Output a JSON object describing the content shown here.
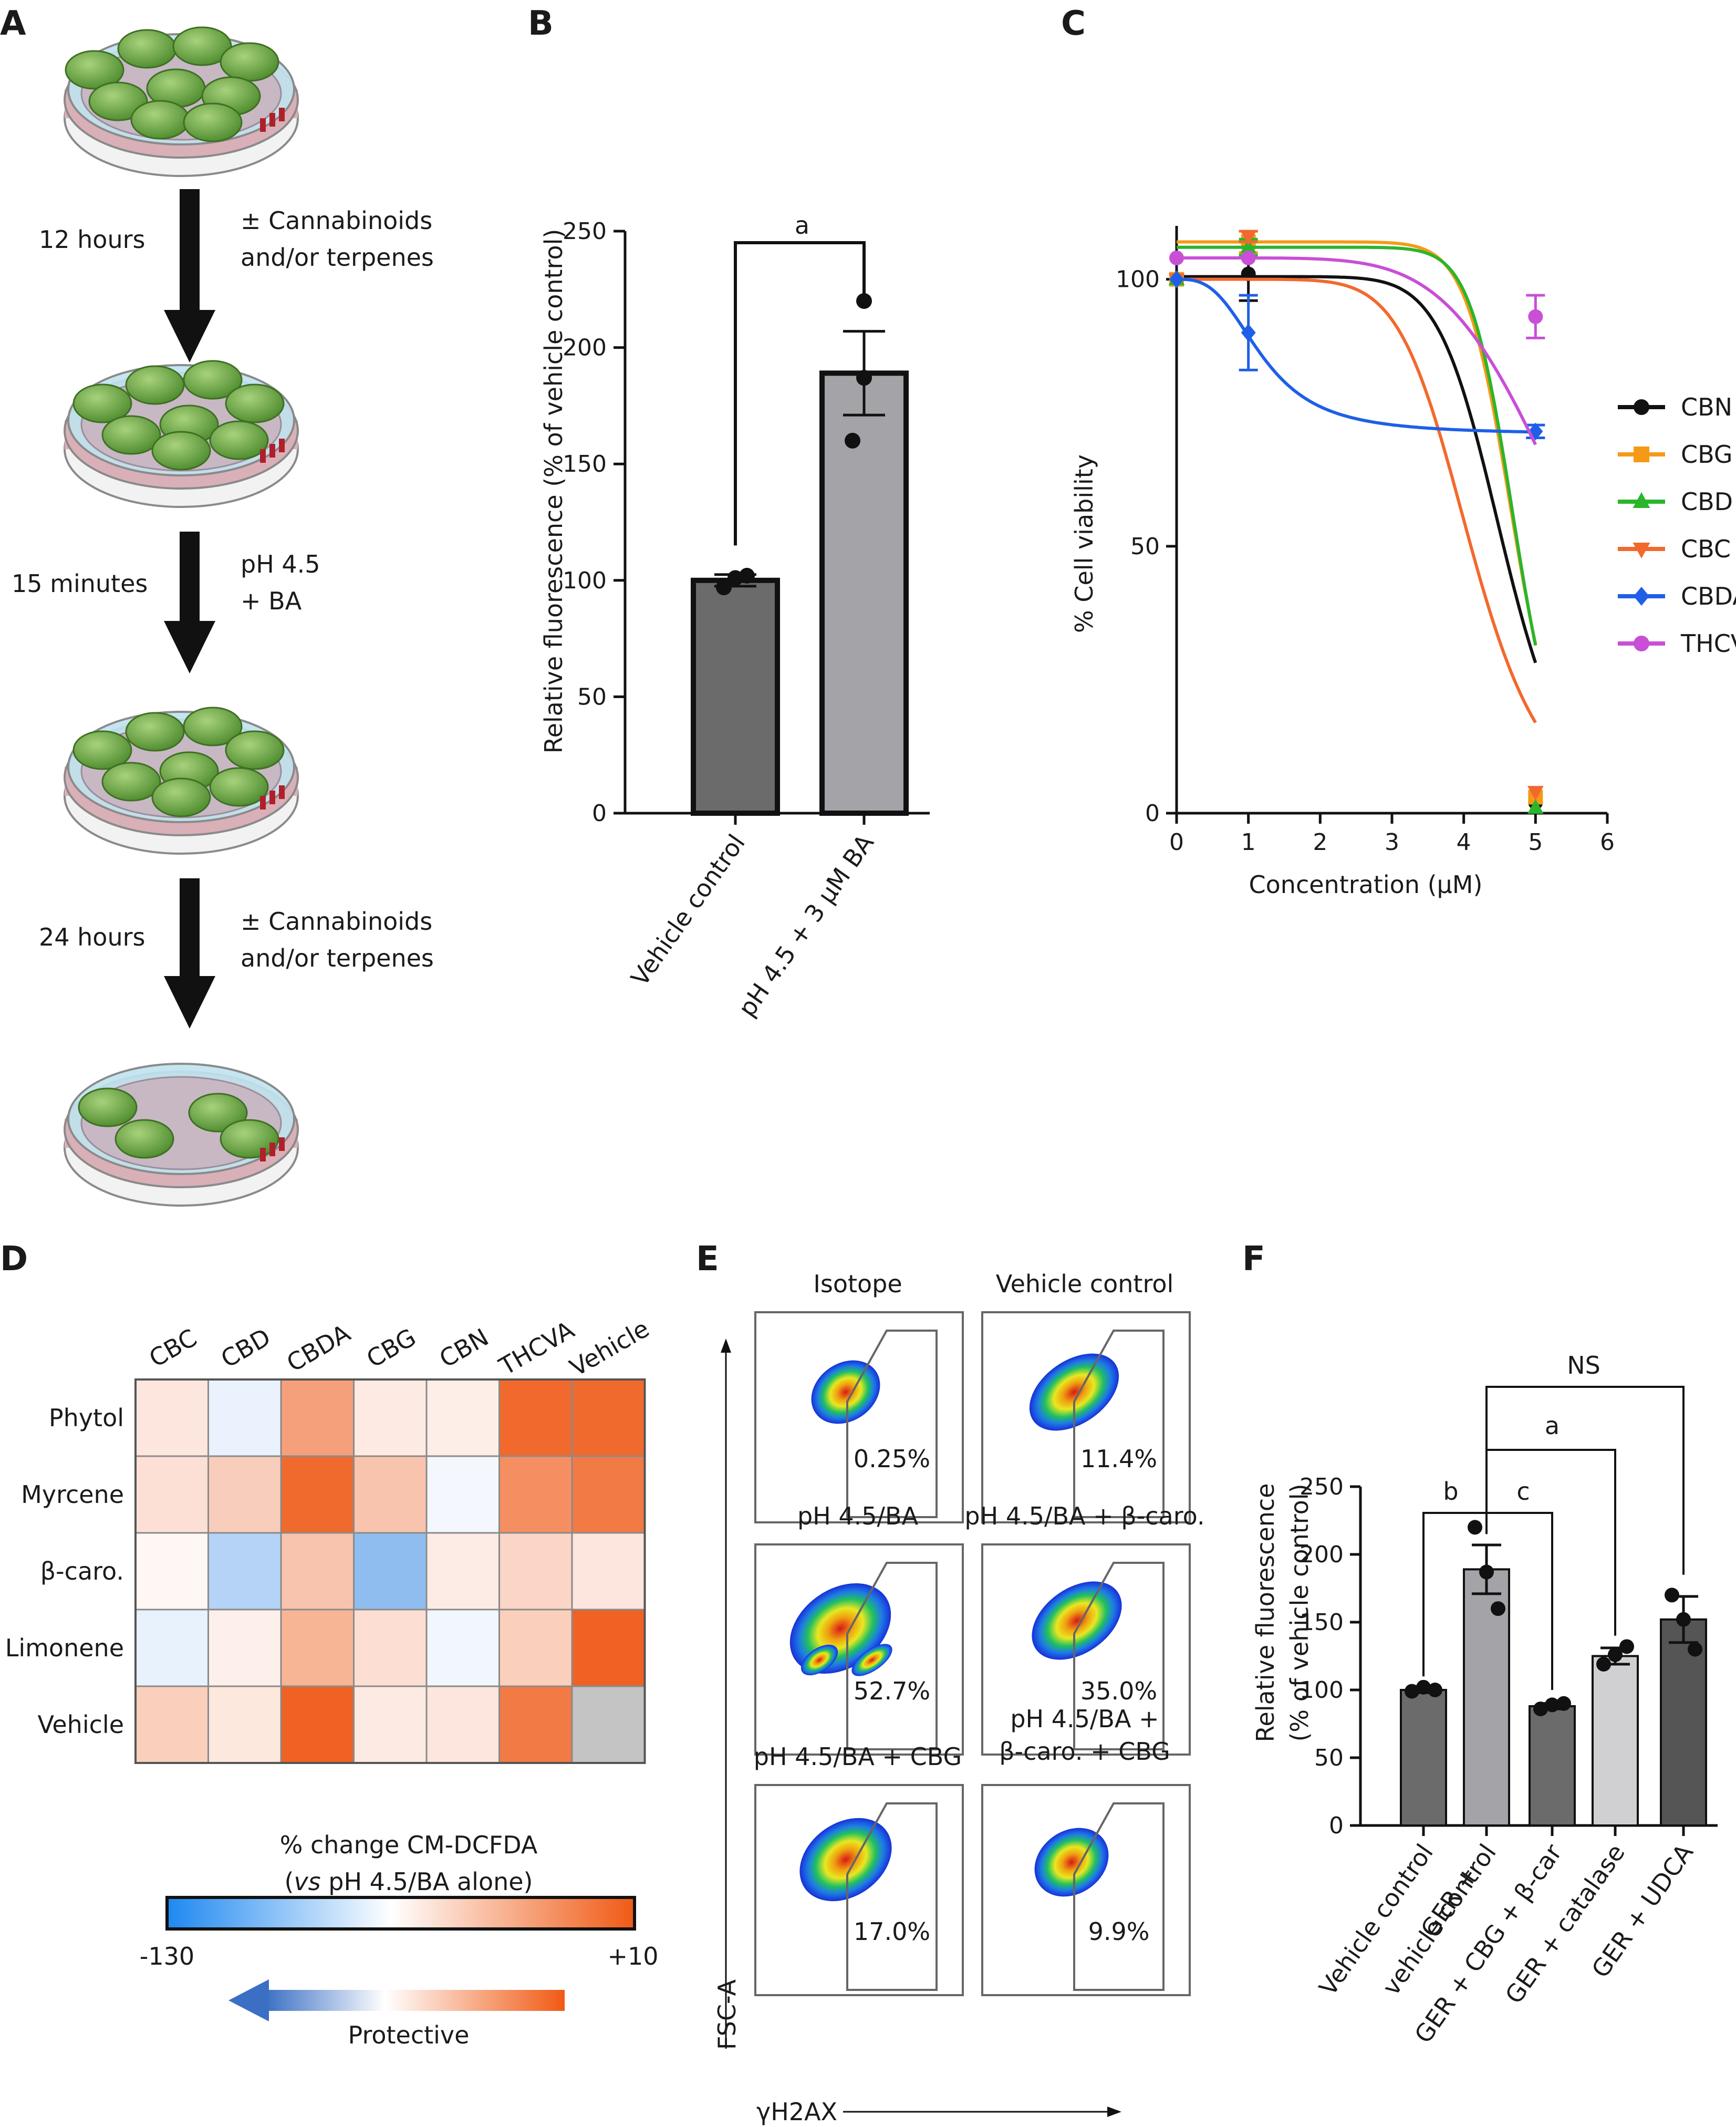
{
  "panels": {
    "A": {
      "label": "A",
      "steps": [
        {
          "time": "12 hours",
          "note1": "± Cannabinoids",
          "note2": "and/or terpenes"
        },
        {
          "time": "15 minutes",
          "note1": "pH 4.5",
          "note2": "+ BA"
        },
        {
          "time": "24 hours",
          "note1": "± Cannabinoids",
          "note2": "and/or terpenes"
        }
      ],
      "colors": {
        "cell": "#5f9a3c",
        "cell_light": "#8fc063",
        "dish": "#bfe3ee",
        "dish_rim": "#8a8a8a",
        "media": "#d9b0b8",
        "marker": "#b0202a"
      }
    },
    "B": {
      "label": "B",
      "ylabel": "Relative fluorescence (% of vehicle control)",
      "sig": "a",
      "chart_data": {
        "type": "bar",
        "categories": [
          "Vehicle control",
          "pH 4.5 + 3 μM BA"
        ],
        "values": [
          100,
          189
        ],
        "errors": [
          2.5,
          18
        ],
        "points": [
          [
            97,
            102,
            101
          ],
          [
            160,
            187,
            220
          ]
        ],
        "ylim": [
          0,
          250
        ],
        "yticks": [
          0,
          50,
          100,
          150,
          200,
          250
        ],
        "colors": [
          "#6b6b6b",
          "#a3a3a8"
        ]
      }
    },
    "C": {
      "label": "C",
      "xlabel": "Concentration (μM)",
      "ylabel": "% Cell viability",
      "chart_data": {
        "type": "line",
        "xlim": [
          0,
          6
        ],
        "ylim": [
          0,
          110
        ],
        "xticks": [
          0,
          1,
          2,
          3,
          4,
          5,
          6
        ],
        "yticks": [
          0,
          50,
          100
        ],
        "x": [
          0,
          1,
          5
        ],
        "series": [
          {
            "name": "CBN",
            "color": "#111111",
            "marker": "circle",
            "points": [
              100,
              101,
              2
            ],
            "errors": [
              0,
              5,
              0
            ],
            "top": 100.5,
            "ec50": 4.55,
            "hill": 10
          },
          {
            "name": "CBG",
            "color": "#f59a16",
            "marker": "square",
            "points": [
              100,
              107,
              3
            ],
            "errors": [
              0,
              2,
              0
            ],
            "top": 107,
            "ec50": 4.7,
            "hill": 14
          },
          {
            "name": "CBD",
            "color": "#2bb52b",
            "marker": "triangle-up",
            "points": [
              100,
              106,
              1
            ],
            "errors": [
              0,
              1.5,
              0
            ],
            "top": 106,
            "ec50": 4.72,
            "hill": 15
          },
          {
            "name": "CBC",
            "color": "#f2692e",
            "marker": "triangle-down",
            "points": [
              100,
              108,
              4
            ],
            "errors": [
              0,
              1,
              0
            ],
            "top": 100,
            "ec50": 4.1,
            "hill": 8
          },
          {
            "name": "CBDA",
            "color": "#1f5fe8",
            "marker": "diamond",
            "points": [
              100,
              90,
              71.5
            ],
            "errors": [
              0,
              7,
              1.2
            ],
            "top": 100,
            "bottom": 71,
            "ec50": 1.2,
            "hill": 3
          },
          {
            "name": "THCV",
            "color": "#c84fd6",
            "marker": "circle",
            "points": [
              104,
              104,
              93
            ],
            "errors": [
              0,
              0,
              4
            ],
            "top": 104,
            "ec50": 5.6,
            "hill": 6
          }
        ]
      }
    },
    "D": {
      "label": "D",
      "caption1": "% change CM-DCFDA",
      "caption2_a": "vs",
      "caption2_b": " pH 4.5/BA alone)",
      "scale_min": "-130",
      "scale_max": "+10",
      "arrow_label": "Protective",
      "chart_data": {
        "type": "heatmap",
        "columns": [
          "CBC",
          "CBD",
          "CBDA",
          "CBG",
          "CBN",
          "THCVA",
          "Vehicle"
        ],
        "rows": [
          "Phytol",
          "Myrcene",
          "β-caro.",
          "Limonene",
          "Vehicle"
        ],
        "colors": [
          [
            "#fde6de",
            "#eaf3fd",
            "#f6a07b",
            "#fdeae3",
            "#fdeee7",
            "#f2692e",
            "#f06a2e"
          ],
          [
            "#fce0d5",
            "#f9cdbb",
            "#f06a2e",
            "#f9c4ad",
            "#f4f8fe",
            "#f58f62",
            "#f27a45"
          ],
          [
            "#fff7f4",
            "#b4d3f6",
            "#f9c4ad",
            "#8fbdf0",
            "#fdece5",
            "#fbd5c5",
            "#fde6de"
          ],
          [
            "#e8f2fd",
            "#fdf0ea",
            "#f8b596",
            "#fcdfd2",
            "#f2f7fe",
            "#fad0bd",
            "#f06224"
          ],
          [
            "#fad0bd",
            "#fde8de",
            "#f06224",
            "#fdeae3",
            "#fde6de",
            "#f27a45",
            "#c4c4c4"
          ]
        ]
      }
    },
    "E": {
      "label": "E",
      "yaxis": "FSC-A",
      "xaxis": "γH2AX",
      "plots": [
        {
          "title": "Isotope",
          "pct": "0.25%"
        },
        {
          "title": "Vehicle control",
          "pct": "11.4%"
        },
        {
          "title": "pH 4.5/BA",
          "pct": "52.7%"
        },
        {
          "title": "pH 4.5/BA + β-caro.",
          "pct": "35.0%"
        },
        {
          "title": "pH 4.5/BA + CBG",
          "pct": "17.0%"
        },
        {
          "title": "pH 4.5/BA +",
          "title2": "β-caro. + CBG",
          "pct": "9.9%"
        }
      ]
    },
    "F": {
      "label": "F",
      "ylabel1": "Relative fluorescence",
      "ylabel2": "(% of vehicle control)",
      "sig": {
        "b": "b",
        "c": "c",
        "a": "a",
        "ns": "NS"
      },
      "chart_data": {
        "type": "bar",
        "categories": [
          "Vehicle control",
          "GER + vehicle control",
          "GER + CBG + β-car",
          "GER + catalase",
          "GER + UDCA"
        ],
        "tick_lines": [
          [
            "Vehicle control"
          ],
          [
            "GER +",
            "vehicle control"
          ],
          [
            "GER + CBG + β-car"
          ],
          [
            "GER + catalase"
          ],
          [
            "GER + UDCA"
          ]
        ],
        "values": [
          100,
          189,
          88,
          125,
          152
        ],
        "errors": [
          2,
          18,
          2,
          6,
          17
        ],
        "points": [
          [
            99,
            102,
            100
          ],
          [
            160,
            187,
            220
          ],
          [
            86,
            89,
            90
          ],
          [
            119,
            126,
            132
          ],
          [
            130,
            152,
            170
          ]
        ],
        "ylim": [
          0,
          250
        ],
        "yticks": [
          0,
          50,
          100,
          150,
          200,
          250
        ],
        "colors": [
          "#6b6b6b",
          "#a3a3a8",
          "#6b6b6b",
          "#d0d0d2",
          "#555555"
        ]
      }
    }
  }
}
